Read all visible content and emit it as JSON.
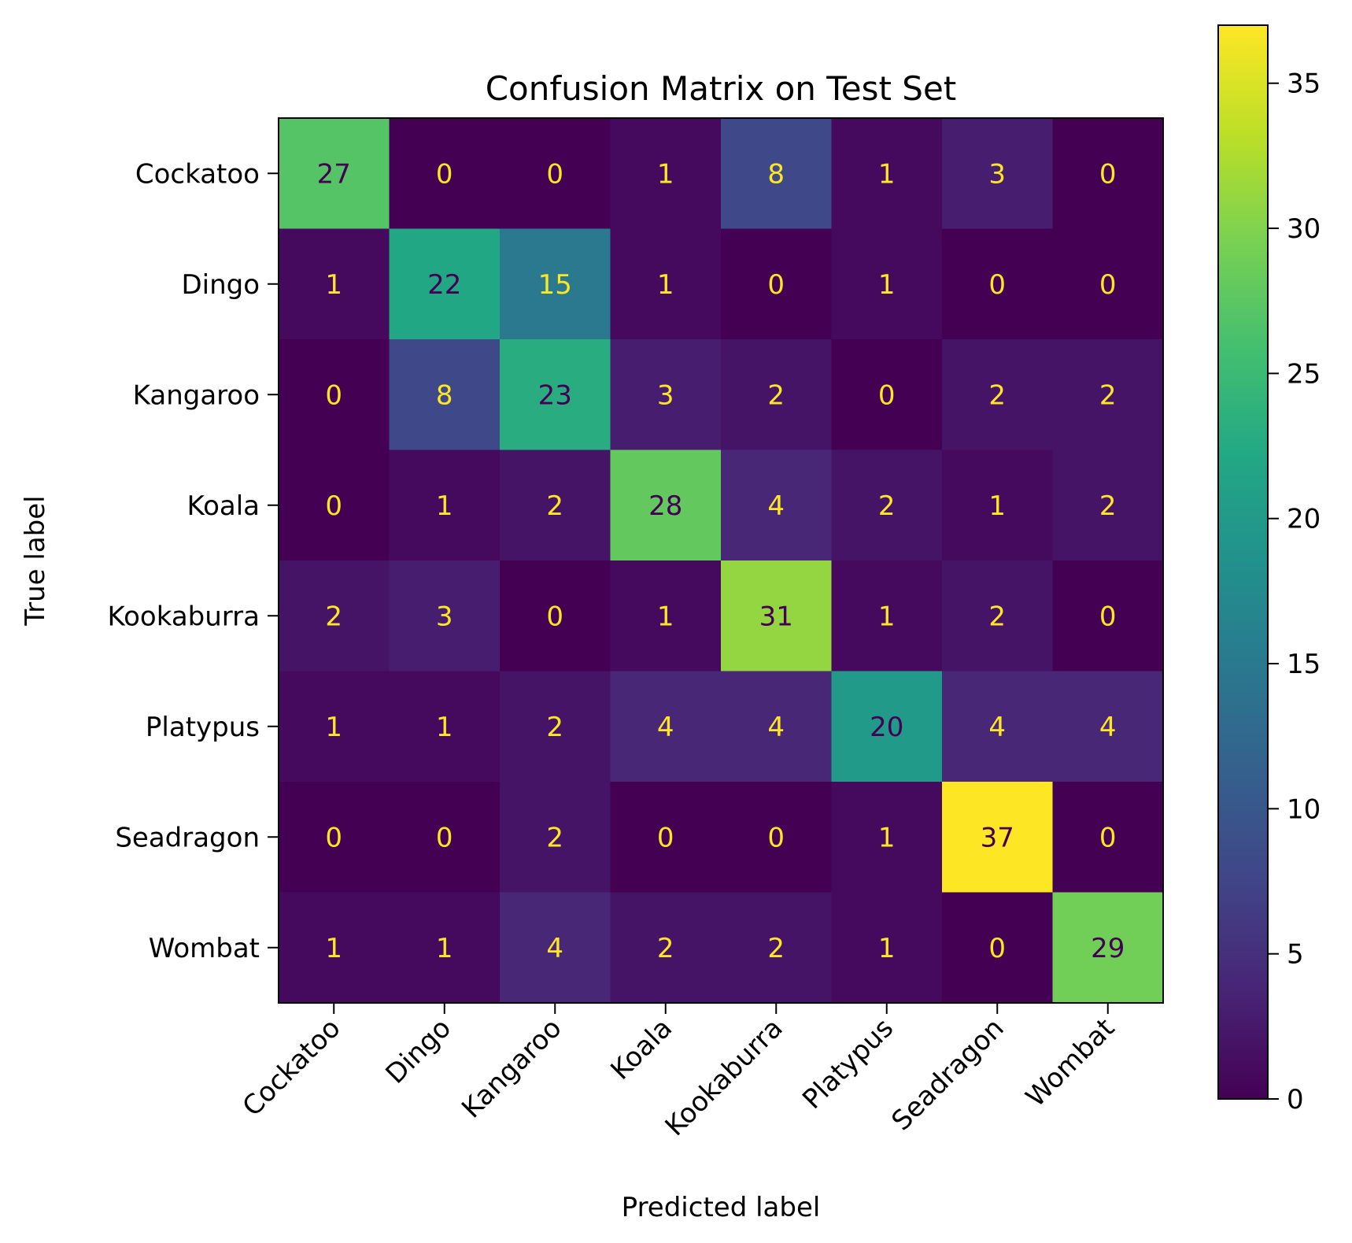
{
  "chart_data": {
    "type": "heatmap",
    "title": "Confusion Matrix on Test Set",
    "xlabel": "Predicted label",
    "ylabel": "True label",
    "x_categories": [
      "Cockatoo",
      "Dingo",
      "Kangaroo",
      "Koala",
      "Kookaburra",
      "Platypus",
      "Seadragon",
      "Wombat"
    ],
    "y_categories": [
      "Cockatoo",
      "Dingo",
      "Kangaroo",
      "Koala",
      "Kookaburra",
      "Platypus",
      "Seadragon",
      "Wombat"
    ],
    "values": [
      [
        27,
        0,
        0,
        1,
        8,
        1,
        3,
        0
      ],
      [
        1,
        22,
        15,
        1,
        0,
        1,
        0,
        0
      ],
      [
        0,
        8,
        23,
        3,
        2,
        0,
        2,
        2
      ],
      [
        0,
        1,
        2,
        28,
        4,
        2,
        1,
        2
      ],
      [
        2,
        3,
        0,
        1,
        31,
        1,
        2,
        0
      ],
      [
        1,
        1,
        2,
        4,
        4,
        20,
        4,
        4
      ],
      [
        0,
        0,
        2,
        0,
        0,
        1,
        37,
        0
      ],
      [
        1,
        1,
        4,
        2,
        2,
        1,
        0,
        29
      ]
    ],
    "colormap": "viridis",
    "colorbar": {
      "range": [
        0,
        37
      ],
      "ticks": [
        0,
        5,
        10,
        15,
        20,
        25,
        30,
        35
      ]
    },
    "text_color_dark": "#440154",
    "text_color_light": "#fde725"
  }
}
